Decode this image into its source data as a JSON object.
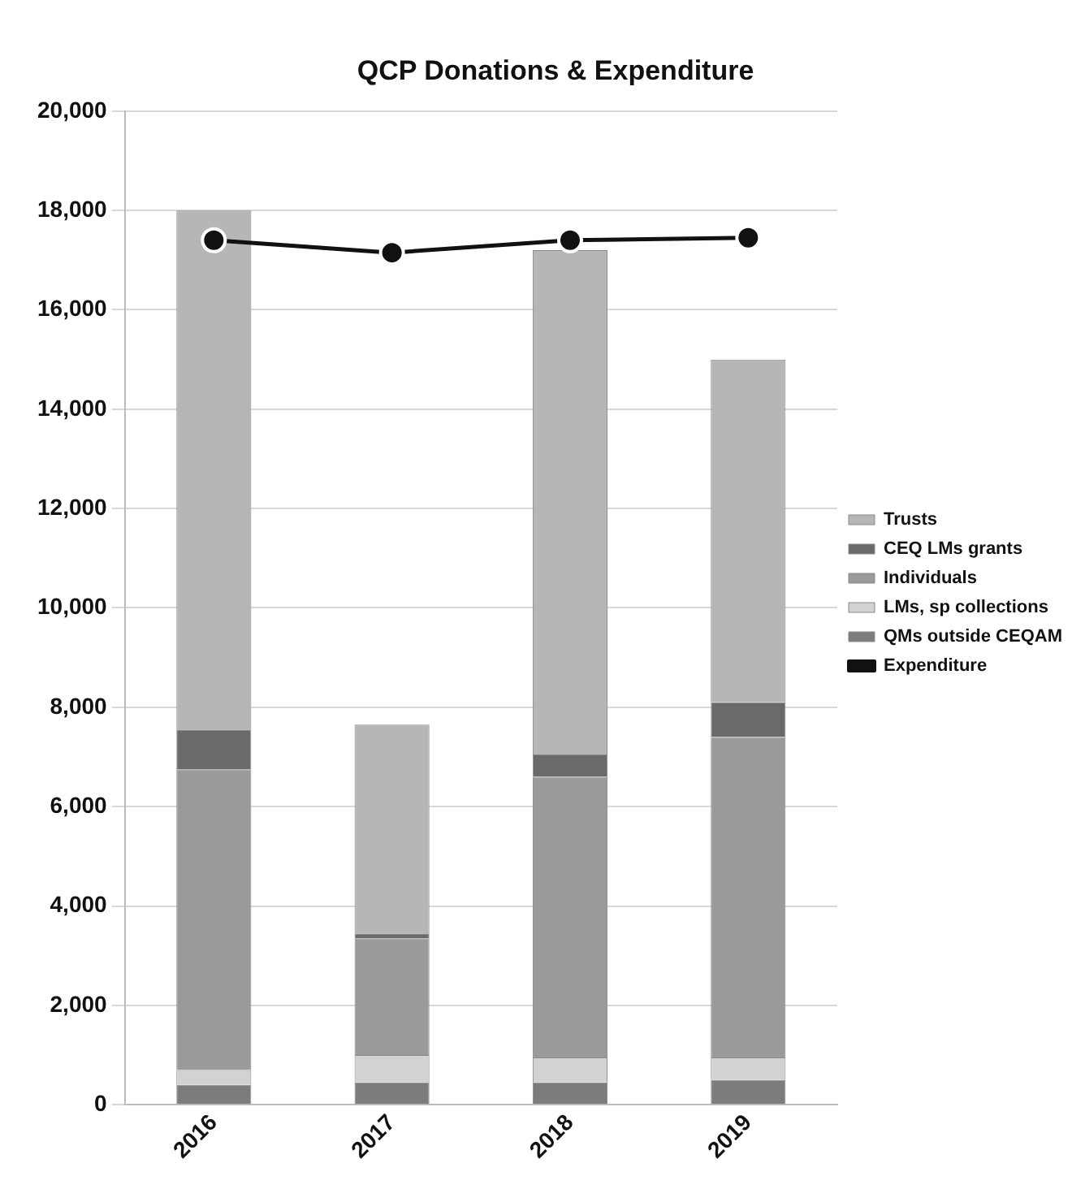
{
  "chart_data": {
    "type": "bar",
    "title": "QCP Donations & Expenditure",
    "categories": [
      "2016",
      "2017",
      "2018",
      "2019"
    ],
    "stacked": true,
    "series": [
      {
        "name": "QMs outside CEQAM",
        "color": "#7c7c7e",
        "values": [
          400,
          450,
          450,
          500
        ]
      },
      {
        "name": "LMs, sp collections",
        "color": "#d2d2d4",
        "values": [
          300,
          550,
          500,
          450
        ]
      },
      {
        "name": "Individuals",
        "color": "#9a9a9c",
        "values": [
          6050,
          2350,
          5650,
          6450
        ]
      },
      {
        "name": "CEQ LMs grants",
        "color": "#6a6a6c",
        "values": [
          800,
          100,
          450,
          700
        ]
      },
      {
        "name": "Trusts",
        "color": "#b6b6b8",
        "values": [
          10450,
          4200,
          10150,
          6900
        ]
      },
      {
        "name": "Expenditure",
        "type": "line",
        "color": "#111111",
        "values": [
          17400,
          17150,
          17400,
          17450
        ]
      }
    ],
    "ylim": [
      0,
      20000
    ],
    "yticks": [
      0,
      {
        "value": 2000,
        "label": "2,000"
      },
      {
        "value": 4000,
        "label": "4,000"
      },
      {
        "value": 6000,
        "label": "6,000"
      },
      {
        "value": 8000,
        "label": "8,000"
      },
      {
        "value": 10000,
        "label": "10,000"
      },
      {
        "value": 12000,
        "label": "12,000"
      },
      {
        "value": 14000,
        "label": "14,000"
      },
      {
        "value": 16000,
        "label": "16,000"
      },
      {
        "value": 18000,
        "label": "18,000"
      },
      {
        "value": 20000,
        "label": "20,000"
      }
    ],
    "grid": "y",
    "legend": "right",
    "marker": "circle"
  }
}
